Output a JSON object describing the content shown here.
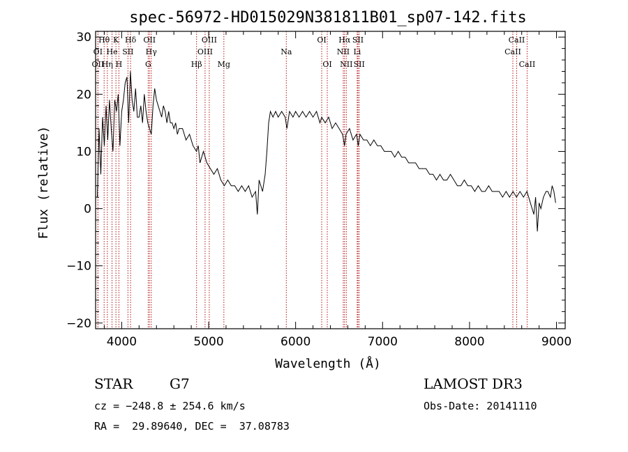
{
  "chart_data": {
    "type": "line",
    "title": "spec-56972-HD015029N381811B01_sp07-142.fits",
    "xlabel": "Wavelength (Å)",
    "ylabel": "Flux (relative)",
    "xlim": [
      3700,
      9100
    ],
    "ylim": [
      -21,
      31
    ],
    "x_ticks": [
      "4000",
      "5000",
      "6000",
      "7000",
      "8000",
      "9000"
    ],
    "y_ticks": [
      "−20",
      "−10",
      "0",
      "10",
      "20",
      "30"
    ],
    "x_tick_values": [
      4000,
      5000,
      6000,
      7000,
      8000,
      9000
    ],
    "y_tick_values": [
      -20,
      -10,
      0,
      10,
      20,
      30
    ],
    "series": [
      {
        "values": [
          [
            3720,
            2
          ],
          [
            3740,
            14
          ],
          [
            3760,
            6
          ],
          [
            3780,
            16
          ],
          [
            3800,
            11
          ],
          [
            3820,
            18
          ],
          [
            3840,
            12
          ],
          [
            3860,
            19
          ],
          [
            3880,
            14
          ],
          [
            3900,
            10
          ],
          [
            3920,
            19
          ],
          [
            3940,
            17
          ],
          [
            3960,
            20
          ],
          [
            3980,
            11
          ],
          [
            4000,
            17
          ],
          [
            4020,
            19
          ],
          [
            4040,
            22
          ],
          [
            4060,
            23
          ],
          [
            4080,
            15
          ],
          [
            4100,
            24
          ],
          [
            4120,
            19
          ],
          [
            4140,
            17
          ],
          [
            4160,
            21
          ],
          [
            4180,
            16
          ],
          [
            4200,
            16
          ],
          [
            4220,
            18
          ],
          [
            4240,
            15
          ],
          [
            4260,
            20
          ],
          [
            4280,
            17
          ],
          [
            4300,
            15
          ],
          [
            4320,
            14
          ],
          [
            4340,
            13
          ],
          [
            4360,
            18
          ],
          [
            4380,
            21
          ],
          [
            4400,
            19
          ],
          [
            4420,
            18
          ],
          [
            4440,
            17
          ],
          [
            4460,
            16
          ],
          [
            4480,
            18
          ],
          [
            4500,
            17
          ],
          [
            4520,
            15
          ],
          [
            4540,
            17
          ],
          [
            4560,
            15
          ],
          [
            4580,
            15
          ],
          [
            4600,
            14
          ],
          [
            4620,
            15
          ],
          [
            4640,
            13
          ],
          [
            4660,
            14
          ],
          [
            4700,
            14
          ],
          [
            4740,
            12
          ],
          [
            4780,
            13
          ],
          [
            4820,
            11
          ],
          [
            4860,
            10
          ],
          [
            4880,
            11
          ],
          [
            4900,
            8
          ],
          [
            4940,
            10
          ],
          [
            4980,
            8
          ],
          [
            5020,
            7
          ],
          [
            5060,
            6
          ],
          [
            5100,
            7
          ],
          [
            5140,
            5
          ],
          [
            5180,
            4
          ],
          [
            5220,
            5
          ],
          [
            5260,
            4
          ],
          [
            5300,
            4
          ],
          [
            5340,
            3
          ],
          [
            5380,
            4
          ],
          [
            5420,
            3
          ],
          [
            5460,
            4
          ],
          [
            5500,
            2
          ],
          [
            5540,
            3
          ],
          [
            5560,
            -1
          ],
          [
            5580,
            5
          ],
          [
            5620,
            3
          ],
          [
            5650,
            6
          ],
          [
            5670,
            10
          ],
          [
            5690,
            15
          ],
          [
            5710,
            17
          ],
          [
            5740,
            16
          ],
          [
            5770,
            17
          ],
          [
            5800,
            16
          ],
          [
            5840,
            17
          ],
          [
            5880,
            16
          ],
          [
            5900,
            14
          ],
          [
            5930,
            17
          ],
          [
            5970,
            16
          ],
          [
            6000,
            17
          ],
          [
            6040,
            16
          ],
          [
            6080,
            17
          ],
          [
            6120,
            16
          ],
          [
            6160,
            17
          ],
          [
            6200,
            16
          ],
          [
            6240,
            17
          ],
          [
            6280,
            15
          ],
          [
            6300,
            16
          ],
          [
            6340,
            15
          ],
          [
            6380,
            16
          ],
          [
            6420,
            14
          ],
          [
            6460,
            15
          ],
          [
            6500,
            14
          ],
          [
            6540,
            13
          ],
          [
            6563,
            11
          ],
          [
            6580,
            13
          ],
          [
            6620,
            14
          ],
          [
            6660,
            12
          ],
          [
            6700,
            13
          ],
          [
            6720,
            11
          ],
          [
            6740,
            13
          ],
          [
            6780,
            12
          ],
          [
            6820,
            12
          ],
          [
            6860,
            11
          ],
          [
            6900,
            12
          ],
          [
            6940,
            11
          ],
          [
            6980,
            11
          ],
          [
            7020,
            10
          ],
          [
            7060,
            10
          ],
          [
            7100,
            10
          ],
          [
            7140,
            9
          ],
          [
            7180,
            10
          ],
          [
            7220,
            9
          ],
          [
            7260,
            9
          ],
          [
            7300,
            8
          ],
          [
            7340,
            8
          ],
          [
            7380,
            8
          ],
          [
            7420,
            7
          ],
          [
            7460,
            7
          ],
          [
            7500,
            7
          ],
          [
            7540,
            6
          ],
          [
            7580,
            6
          ],
          [
            7620,
            5
          ],
          [
            7660,
            6
          ],
          [
            7700,
            5
          ],
          [
            7740,
            5
          ],
          [
            7780,
            6
          ],
          [
            7820,
            5
          ],
          [
            7860,
            4
          ],
          [
            7900,
            4
          ],
          [
            7940,
            5
          ],
          [
            7980,
            4
          ],
          [
            8020,
            4
          ],
          [
            8060,
            3
          ],
          [
            8100,
            4
          ],
          [
            8140,
            3
          ],
          [
            8180,
            3
          ],
          [
            8220,
            4
          ],
          [
            8260,
            3
          ],
          [
            8300,
            3
          ],
          [
            8340,
            3
          ],
          [
            8380,
            2
          ],
          [
            8420,
            3
          ],
          [
            8460,
            2
          ],
          [
            8500,
            3
          ],
          [
            8540,
            2
          ],
          [
            8580,
            3
          ],
          [
            8620,
            2
          ],
          [
            8660,
            3
          ],
          [
            8700,
            1
          ],
          [
            8740,
            -1
          ],
          [
            8760,
            2
          ],
          [
            8780,
            -4
          ],
          [
            8800,
            1
          ],
          [
            8820,
            0
          ],
          [
            8850,
            2
          ],
          [
            8880,
            3
          ],
          [
            8900,
            3
          ],
          [
            8930,
            2
          ],
          [
            8950,
            4
          ],
          [
            8970,
            3
          ],
          [
            8990,
            1
          ]
        ]
      }
    ],
    "lines_top": [
      {
        "label": "Hθ",
        "x": 3798,
        "row": 1
      },
      {
        "label": "K",
        "x": 3934,
        "row": 1
      },
      {
        "label": "Hδ",
        "x": 4102,
        "row": 1
      },
      {
        "label": "OII",
        "x": 4320,
        "row": 1
      },
      {
        "label": "OIII",
        "x": 5007,
        "row": 1
      },
      {
        "label": "OI",
        "x": 6300,
        "row": 1
      },
      {
        "label": "Hα",
        "x": 6563,
        "row": 1
      },
      {
        "label": "SII",
        "x": 6717,
        "row": 1
      },
      {
        "label": "CaII",
        "x": 8542,
        "row": 1
      },
      {
        "label": "OI",
        "x": 3727,
        "row": 2
      },
      {
        "label": "He",
        "x": 3889,
        "row": 2
      },
      {
        "label": "SII",
        "x": 4072,
        "row": 2
      },
      {
        "label": "Hγ",
        "x": 4340,
        "row": 2
      },
      {
        "label": "OIII",
        "x": 4959,
        "row": 2
      },
      {
        "label": "Na",
        "x": 5893,
        "row": 2
      },
      {
        "label": "NII",
        "x": 6548,
        "row": 2
      },
      {
        "label": "Li",
        "x": 6708,
        "row": 2
      },
      {
        "label": "CaII",
        "x": 8498,
        "row": 2
      },
      {
        "label": "OII",
        "x": 3727,
        "row": 3
      },
      {
        "label": "Hη",
        "x": 3835,
        "row": 3
      },
      {
        "label": "H",
        "x": 3968,
        "row": 3
      },
      {
        "label": "G",
        "x": 4305,
        "row": 3
      },
      {
        "label": "Hβ",
        "x": 4861,
        "row": 3
      },
      {
        "label": "Mg",
        "x": 5175,
        "row": 3
      },
      {
        "label": "OI",
        "x": 6364,
        "row": 3
      },
      {
        "label": "NII",
        "x": 6583,
        "row": 3
      },
      {
        "label": "SII",
        "x": 6731,
        "row": 3
      },
      {
        "label": "CaII",
        "x": 8662,
        "row": 3
      }
    ],
    "line_marker_color": "#b01010"
  },
  "info": {
    "class_label": "STAR",
    "subclass": "G7",
    "survey": "LAMOST DR3",
    "cz": "cz = −248.8 ± 254.6 km/s",
    "obs_date": "Obs-Date: 20141110",
    "radec": "RA =  29.89640, DEC =  37.08783"
  }
}
